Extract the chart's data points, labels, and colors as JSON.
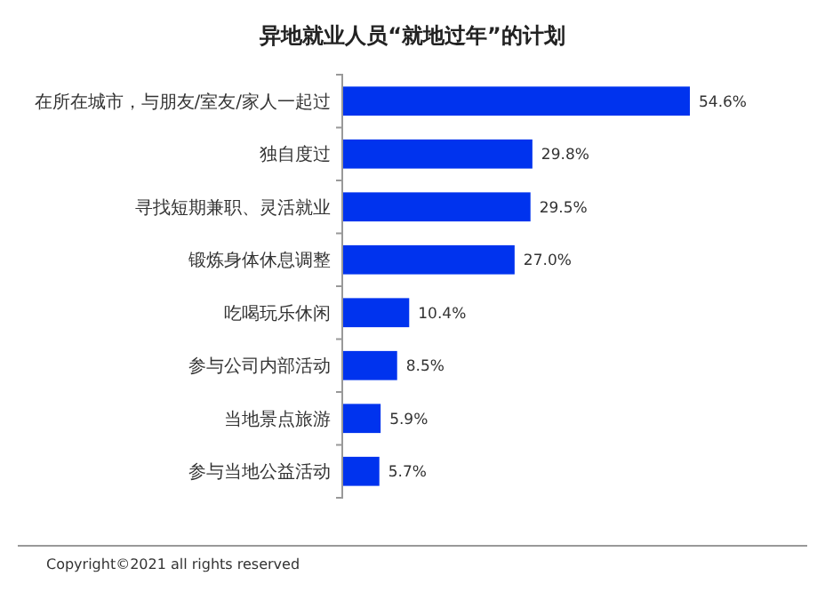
{
  "chart_data": {
    "type": "bar",
    "orientation": "horizontal",
    "title": "异地就业人员“就地过年”的计划",
    "categories": [
      "在所在城市，与朋友/室友/家人一起过",
      "独自度过",
      "寻找短期兼职、灵活就业",
      "锻炼身体休息调整",
      "吃喝玩乐休闲",
      "参与公司内部活动",
      "当地景点旅游",
      "参与当地公益活动"
    ],
    "values": [
      54.6,
      29.8,
      29.5,
      27.0,
      10.4,
      8.5,
      5.9,
      5.7
    ],
    "value_labels": [
      "54.6%",
      "29.8%",
      "29.5%",
      "27.0%",
      "10.4%",
      "8.5%",
      "5.9%",
      "5.7%"
    ],
    "color": "#0033ee",
    "annotations": [
      "Copyright©2021 all rights reserved"
    ]
  }
}
